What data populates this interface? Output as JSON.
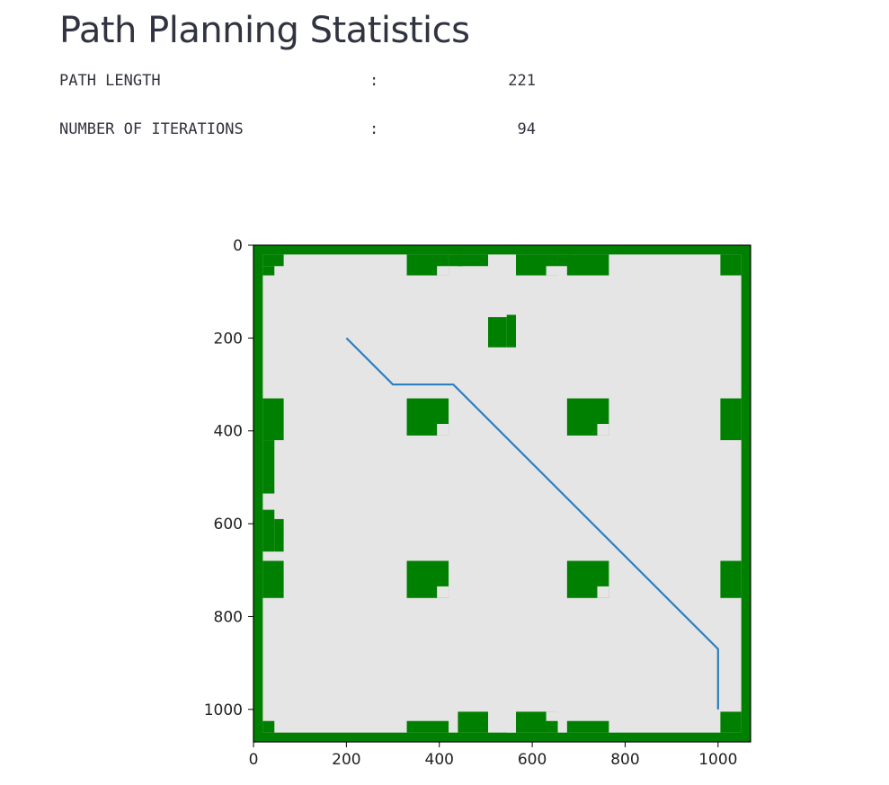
{
  "header": {
    "title": "Path Planning Statistics"
  },
  "stats": [
    {
      "label": "PATH LENGTH",
      "separator": ":",
      "value": "221"
    },
    {
      "label": "NUMBER OF ITERATIONS",
      "separator": ":",
      "value": "94"
    }
  ],
  "colors": {
    "obstacle": "#008000",
    "free_space": "#e5e5e5",
    "path": "#2e7fbf",
    "frame": "#000000"
  },
  "chart_data": {
    "type": "line",
    "title": "",
    "xlabel": "",
    "ylabel": "",
    "xlim": [
      0,
      1070
    ],
    "ylim": [
      1070,
      0
    ],
    "y_inverted": true,
    "grid": false,
    "xticks": [
      0,
      200,
      400,
      600,
      800,
      1000
    ],
    "yticks": [
      0,
      200,
      400,
      600,
      800,
      1000
    ],
    "xtick_labels": [
      "0",
      "200",
      "400",
      "600",
      "800",
      "1000"
    ],
    "ytick_labels": [
      "0",
      "200",
      "400",
      "600",
      "800",
      "1000"
    ],
    "series": [
      {
        "x": [
          200,
          300,
          430,
          1000,
          1000
        ],
        "y": [
          200,
          300,
          300,
          870,
          1000
        ]
      }
    ],
    "obstacles": [
      [
        0,
        0,
        1070,
        20
      ],
      [
        0,
        1050,
        1070,
        20
      ],
      [
        0,
        0,
        20,
        1070
      ],
      [
        1050,
        0,
        20,
        1070
      ],
      [
        20,
        20,
        45,
        25
      ],
      [
        20,
        45,
        25,
        20
      ],
      [
        1005,
        20,
        45,
        45
      ],
      [
        330,
        20,
        90,
        45
      ],
      [
        420,
        20,
        30,
        25
      ],
      [
        440,
        20,
        65,
        25
      ],
      [
        565,
        20,
        90,
        45
      ],
      [
        655,
        20,
        30,
        25
      ],
      [
        675,
        20,
        90,
        45
      ],
      [
        505,
        155,
        40,
        65
      ],
      [
        545,
        150,
        20,
        70
      ],
      [
        20,
        330,
        45,
        90
      ],
      [
        20,
        420,
        25,
        115
      ],
      [
        1005,
        330,
        45,
        90
      ],
      [
        330,
        330,
        90,
        80
      ],
      [
        420,
        330,
        0,
        0
      ],
      [
        675,
        330,
        90,
        80
      ],
      [
        20,
        570,
        25,
        90
      ],
      [
        45,
        590,
        20,
        70
      ],
      [
        20,
        680,
        45,
        80
      ],
      [
        1005,
        680,
        45,
        80
      ],
      [
        330,
        680,
        90,
        80
      ],
      [
        675,
        680,
        90,
        80
      ],
      [
        20,
        1025,
        25,
        25
      ],
      [
        1005,
        1005,
        45,
        45
      ],
      [
        330,
        1025,
        90,
        25
      ],
      [
        440,
        1005,
        65,
        45
      ],
      [
        565,
        1005,
        90,
        45
      ],
      [
        675,
        1025,
        90,
        25
      ]
    ],
    "free_cutouts": [
      [
        395,
        385,
        25,
        25
      ],
      [
        740,
        385,
        25,
        25
      ],
      [
        395,
        735,
        25,
        25
      ],
      [
        740,
        735,
        25,
        25
      ],
      [
        395,
        45,
        25,
        20
      ],
      [
        630,
        45,
        25,
        20
      ],
      [
        505,
        1005,
        20,
        20
      ],
      [
        545,
        1025,
        20,
        25
      ],
      [
        630,
        1005,
        25,
        20
      ]
    ]
  }
}
